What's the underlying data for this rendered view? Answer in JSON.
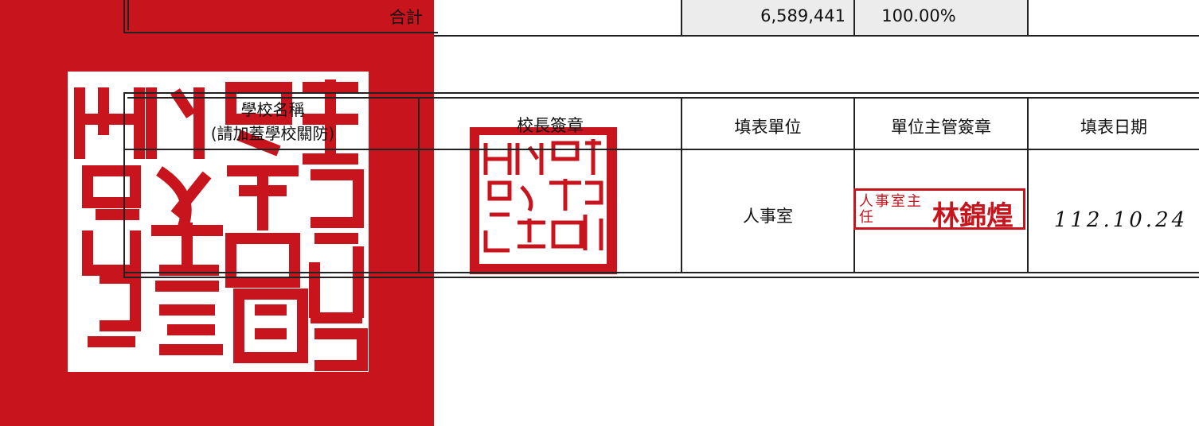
{
  "total_row": {
    "label": "合計",
    "amount": "6,589,441",
    "percent": "100.00%"
  },
  "sign_table": {
    "headers": {
      "school": {
        "title": "學校名稱",
        "note": "(請加蓋學校關防)"
      },
      "principal": "校長簽章",
      "unit": "填表單位",
      "supervisor": "單位主管簽章",
      "date": "填表日期"
    },
    "row": {
      "unit": "人事室",
      "supervisor_stamp": {
        "title": "人事室主任",
        "name": "林錦煌"
      },
      "date": "112.10.24"
    }
  }
}
